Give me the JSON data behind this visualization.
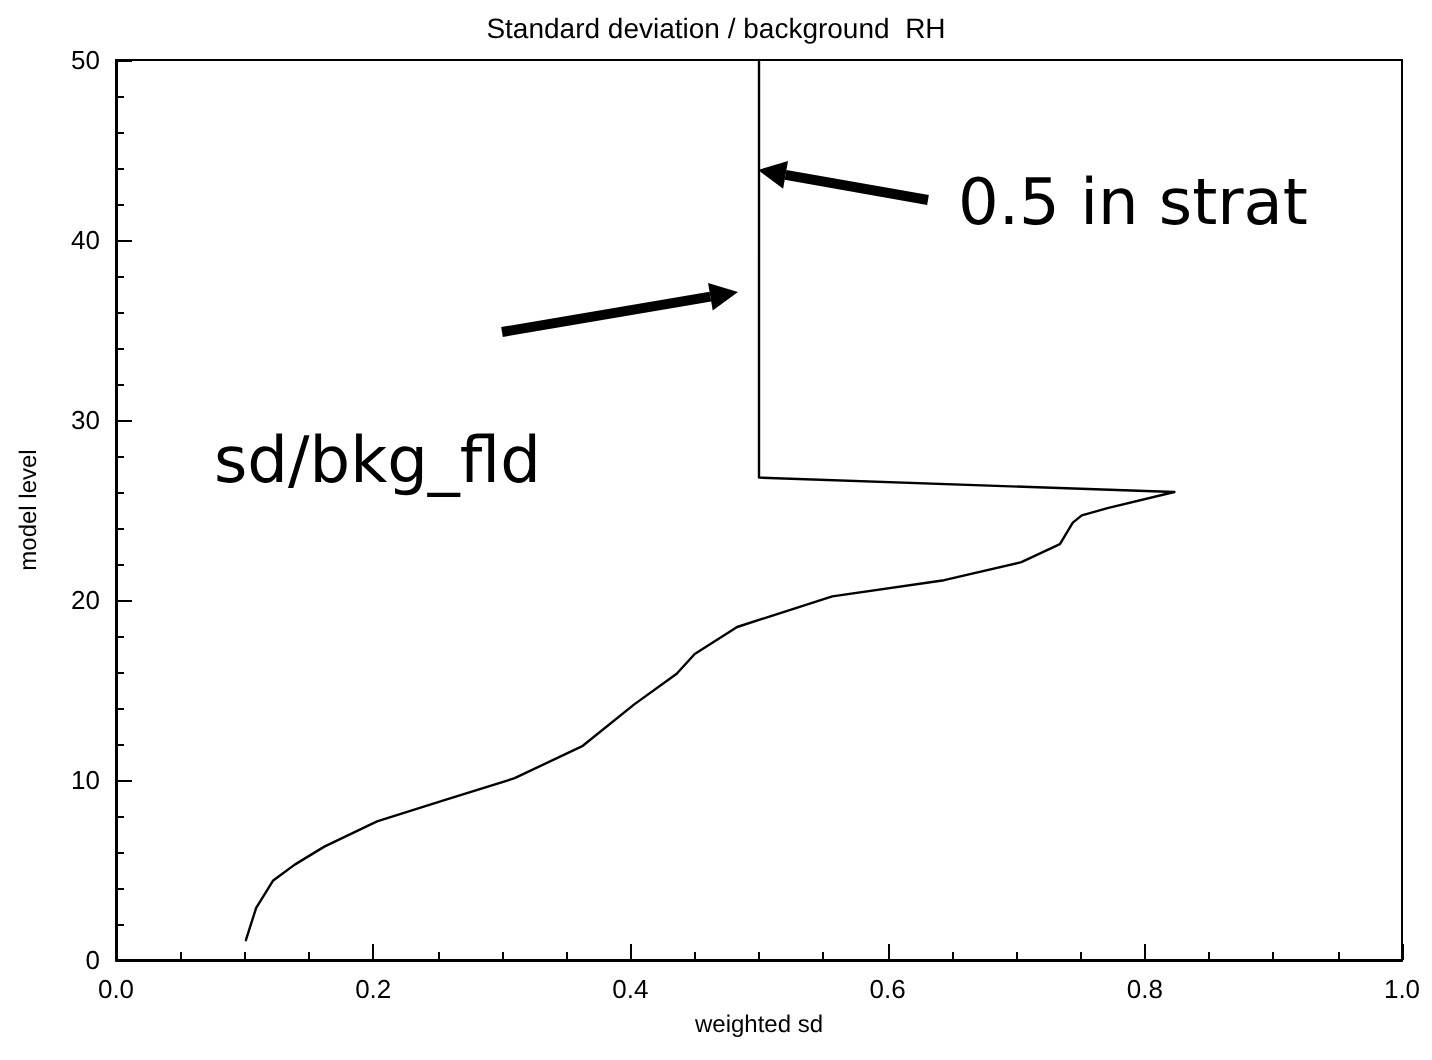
{
  "chart_data": {
    "type": "line",
    "title": "Standard deviation / background  RH",
    "xlabel": "weighted sd",
    "ylabel": "model level",
    "series": [
      {
        "color": "#000000",
        "x": [
          0.101,
          0.109,
          0.122,
          0.139,
          0.162,
          0.203,
          0.256,
          0.31,
          0.363,
          0.403,
          0.436,
          0.45,
          0.483,
          0.557,
          0.644,
          0.704,
          0.734,
          0.744,
          0.751,
          0.771,
          0.823,
          0.5,
          0.5
        ],
        "values": [
          1.1,
          2.9,
          4.4,
          5.3,
          6.3,
          7.7,
          8.9,
          10.1,
          11.9,
          14.2,
          15.9,
          17.0,
          18.5,
          20.2,
          21.1,
          22.1,
          23.1,
          24.3,
          24.7,
          25.1,
          26.0,
          26.8,
          50
        ]
      }
    ],
    "xlim": [
      0,
      1
    ],
    "ylim": [
      0,
      50
    ],
    "xticks": [
      {
        "value": 0,
        "label": "0.0"
      },
      {
        "value": 0.2,
        "label": "0.2"
      },
      {
        "value": 0.4,
        "label": "0.4"
      },
      {
        "value": 0.6,
        "label": "0.6"
      },
      {
        "value": 0.8,
        "label": "0.8"
      },
      {
        "value": 1,
        "label": "1.0"
      }
    ],
    "yticks": [
      0,
      10,
      20,
      30,
      40,
      50
    ],
    "annotations": [
      "0.5 in strat",
      "sd/bkg_fld"
    ],
    "grid": false,
    "marker": "none",
    "line_style": "solid"
  }
}
